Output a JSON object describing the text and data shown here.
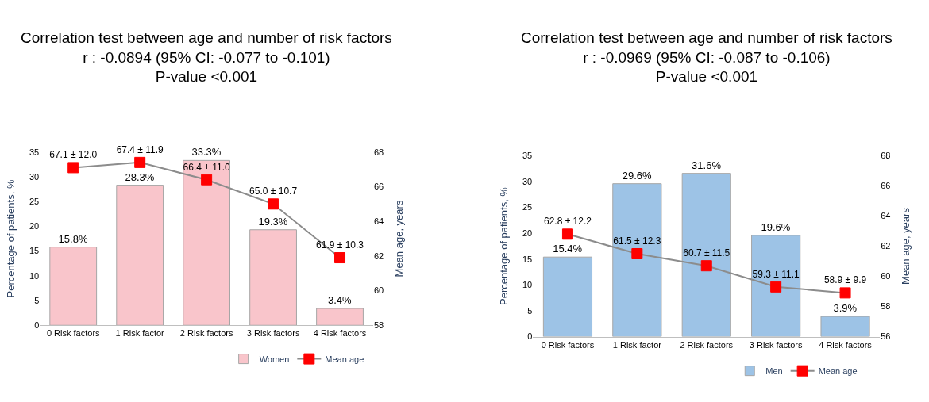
{
  "chart_data": [
    {
      "type": "bar",
      "title": "Correlation test between age and number of risk factors\nr : -0.0894 (95% CI: -0.077 to -0.101)\nP-value <0.001",
      "categories": [
        "0 Risk factors",
        "1 Risk factor",
        "2 Risk factors",
        "3 Risk factors",
        "4 Risk factors"
      ],
      "series": [
        {
          "name": "Women",
          "color": "#f9c5cb",
          "values": [
            15.8,
            28.3,
            33.3,
            19.3,
            3.4
          ],
          "value_labels": [
            "15.8%",
            "28.3%",
            "33.3%",
            "19.3%",
            "3.4%"
          ]
        },
        {
          "name": "Mean age",
          "type": "line",
          "axis": "y2",
          "color": "#ff0000",
          "marker": "square",
          "values": [
            67.1,
            67.4,
            66.4,
            65.0,
            61.9
          ],
          "value_labels": [
            "67.1 ± 12.0",
            "67.4 ± 11.9",
            "66.4 ± 11.0",
            "65.0 ± 10.7",
            "61.9 ± 10.3"
          ]
        }
      ],
      "ylabel": "Percentage of patients, %",
      "y2label": "Mean age, years",
      "ylim": [
        0,
        35
      ],
      "yticks": [
        0,
        5,
        10,
        15,
        20,
        25,
        30,
        35
      ],
      "y2lim": [
        58,
        68
      ],
      "y2ticks": [
        58,
        60,
        62,
        64,
        66,
        68
      ],
      "legend": "bottom"
    },
    {
      "type": "bar",
      "title": "Correlation test between age and number of risk factors\nr : -0.0969 (95% CI: -0.087 to -0.106)\nP-value <0.001",
      "categories": [
        "0 Risk factors",
        "1 Risk factor",
        "2 Risk factors",
        "3 Risk factors",
        "4 Risk factors"
      ],
      "series": [
        {
          "name": "Men",
          "color": "#9dc3e6",
          "values": [
            15.4,
            29.6,
            31.6,
            19.6,
            3.9
          ],
          "value_labels": [
            "15.4%",
            "29.6%",
            "31.6%",
            "19.6%",
            "3.9%"
          ]
        },
        {
          "name": "Mean age",
          "type": "line",
          "axis": "y2",
          "color": "#ff0000",
          "marker": "square",
          "values": [
            62.8,
            61.5,
            60.7,
            59.3,
            58.9
          ],
          "value_labels": [
            "62.8 ± 12.2",
            "61.5 ± 12.3",
            "60.7 ± 11.5",
            "59.3 ± 11.1",
            "58.9 ± 9.9"
          ]
        }
      ],
      "ylabel": "Percentage of patients, %",
      "y2label": "Mean age, years",
      "ylim": [
        0,
        35
      ],
      "yticks": [
        0,
        5,
        10,
        15,
        20,
        25,
        30,
        35
      ],
      "y2lim": [
        56,
        68
      ],
      "y2ticks": [
        56,
        58,
        60,
        62,
        64,
        66,
        68
      ],
      "legend": "bottom"
    }
  ]
}
